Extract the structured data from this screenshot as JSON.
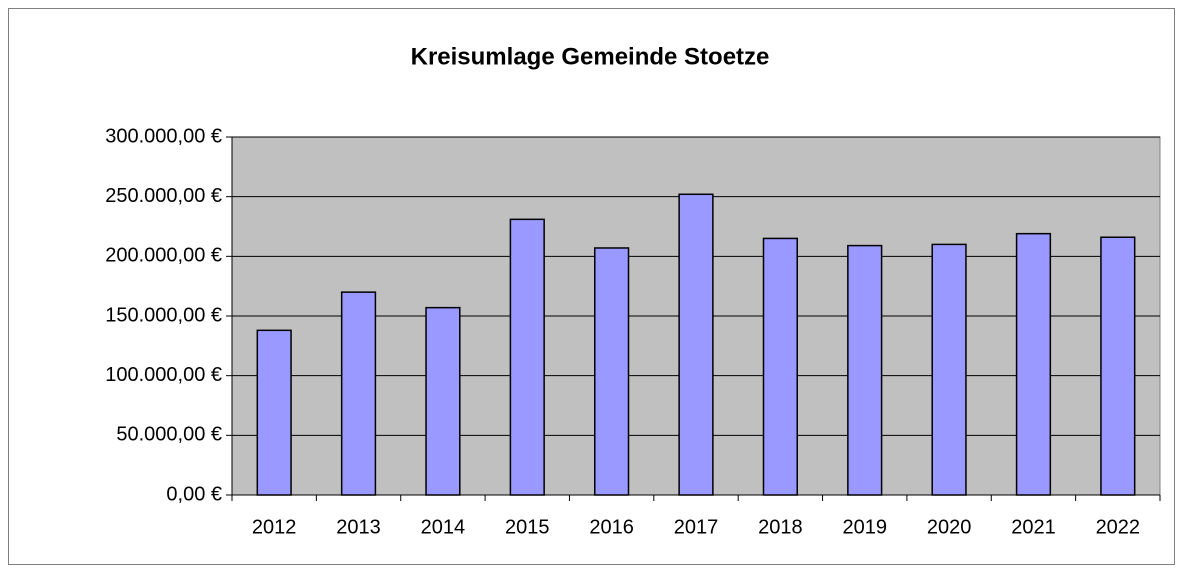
{
  "chart_data": {
    "type": "bar",
    "title": "Kreisumlage Gemeinde Stoetze",
    "categories": [
      "2012",
      "2013",
      "2014",
      "2015",
      "2016",
      "2017",
      "2018",
      "2019",
      "2020",
      "2021",
      "2022"
    ],
    "values": [
      138000,
      170000,
      157000,
      231000,
      207000,
      252000,
      215000,
      209000,
      210000,
      219000,
      216000
    ],
    "color": "#9999ff",
    "ylim": [
      0,
      300000
    ],
    "yticks": [
      {
        "value": 0,
        "label": "0,00 €"
      },
      {
        "value": 50000,
        "label": "50.000,00 €"
      },
      {
        "value": 100000,
        "label": "100.000,00 €"
      },
      {
        "value": 150000,
        "label": "150.000,00 €"
      },
      {
        "value": 200000,
        "label": "200.000,00 €"
      },
      {
        "value": 250000,
        "label": "250.000,00 €"
      },
      {
        "value": 300000,
        "label": "300.000,00 €"
      }
    ],
    "grid": true
  }
}
